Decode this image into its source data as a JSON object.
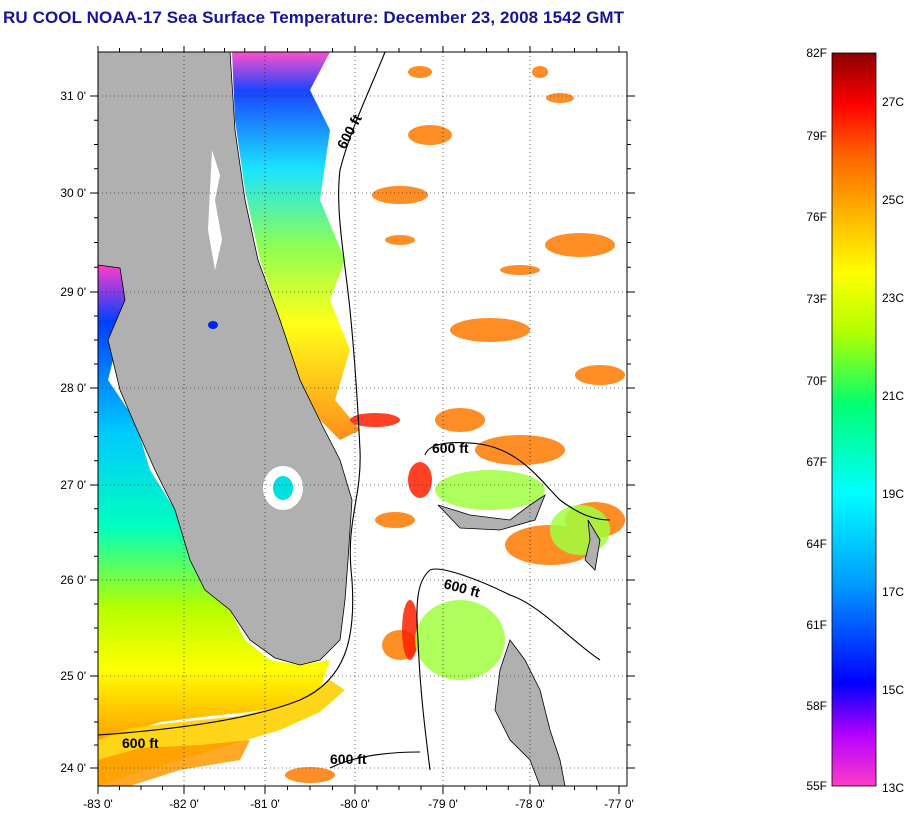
{
  "title": "RU COOL  NOAA-17  Sea Surface Temperature:  December 23, 2008 1542 GMT",
  "map": {
    "lon_ticks": [
      "-83 0'",
      "-82 0'",
      "-81 0'",
      "-80 0'",
      "-79 0'",
      "-78 0'",
      "-77 0'"
    ],
    "lat_ticks": [
      "31 0'",
      "30 0'",
      "29 0'",
      "28 0'",
      "27 0'",
      "26 0'",
      "25 0'",
      "24 0'"
    ],
    "contour_labels": [
      "600 ft",
      "600 ft",
      "600 ft",
      "600 ft",
      "600 ft"
    ],
    "land_color": "#b0b0b0",
    "cloud_color": "#ffffff"
  },
  "colorbar": {
    "fahrenheit_labels": [
      "82F",
      "79F",
      "76F",
      "73F",
      "70F",
      "67F",
      "64F",
      "61F",
      "58F",
      "55F"
    ],
    "celsius_labels": [
      "27C",
      "25C",
      "23C",
      "21C",
      "19C",
      "17C",
      "15C",
      "13C"
    ],
    "colors": [
      "#ff3cc8",
      "#b400ff",
      "#0000ff",
      "#00a0ff",
      "#00ffff",
      "#00ff70",
      "#b4ff00",
      "#ffff00",
      "#ffb400",
      "#ff6400",
      "#ff0000",
      "#8b0000"
    ]
  }
}
